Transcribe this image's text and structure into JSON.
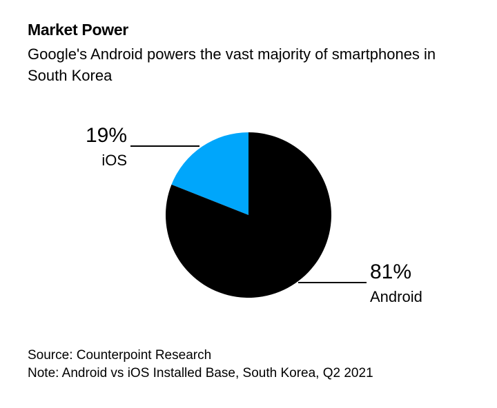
{
  "chart_data": {
    "type": "pie",
    "title": "Market Power",
    "subtitle": "Google's Android powers the vast majority of smartphones in South Korea",
    "slices": [
      {
        "name": "iOS",
        "value": 19,
        "label": "19%",
        "color": "#00a6fb"
      },
      {
        "name": "Android",
        "value": 81,
        "label": "81%",
        "color": "#000000"
      }
    ],
    "start": "12 o'clock",
    "direction": "iOS counterclockwise from top, Android clockwise from top"
  },
  "footer": {
    "source": "Source: Counterpoint Research",
    "note": "Note: Android vs iOS Installed Base, South Korea, Q2 2021"
  }
}
